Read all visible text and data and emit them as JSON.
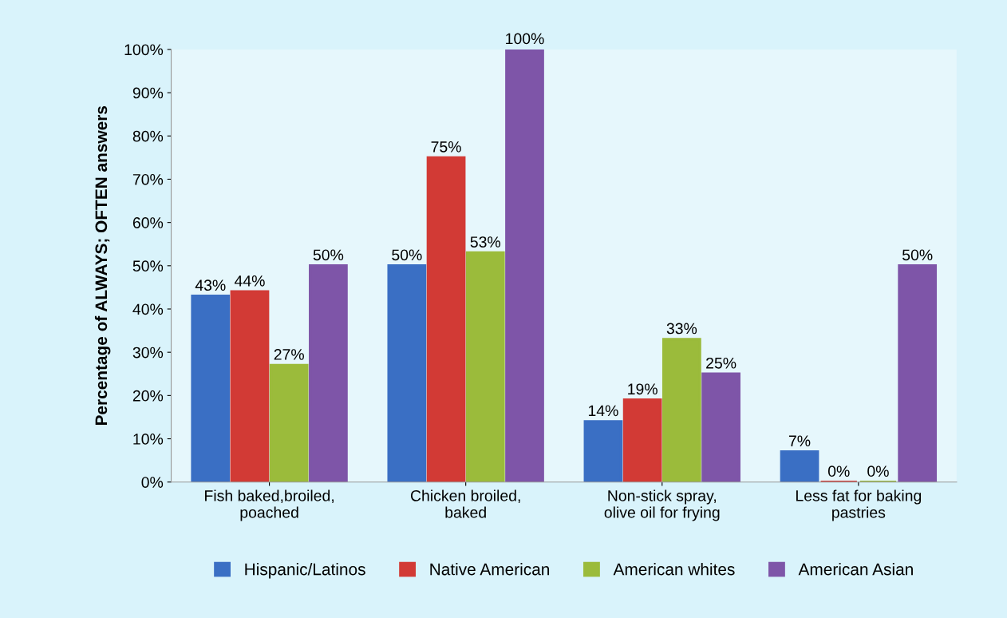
{
  "chart_data": {
    "type": "bar",
    "ylabel": "Percentage of ALWAYS; OFTEN answers",
    "categories": [
      "Fish baked,broiled,\npoached",
      "Chicken broiled,\nbaked",
      "Non-stick spray,\nolive oil for frying",
      "Less fat for baking\npastries"
    ],
    "series": [
      {
        "name": "Hispanic/Latinos",
        "color": "#3a6fc4",
        "values": [
          43,
          50,
          14,
          7
        ],
        "value_labels": [
          "43%",
          "50%",
          "14%",
          "7%"
        ]
      },
      {
        "name": "Native American",
        "color": "#d23a35",
        "values": [
          44,
          75,
          19,
          0
        ],
        "value_labels": [
          "44%",
          "75%",
          "19%",
          "0%"
        ]
      },
      {
        "name": "American whites",
        "color": "#9bbb3b",
        "values": [
          27,
          53,
          33,
          0
        ],
        "value_labels": [
          "27%",
          "53%",
          "33%",
          "0%"
        ]
      },
      {
        "name": "American Asian",
        "color": "#7e55a8",
        "values": [
          50,
          100,
          25,
          50
        ],
        "value_labels": [
          "50%",
          "100%",
          "25%",
          "50%"
        ]
      }
    ],
    "ylim": [
      0,
      100
    ],
    "yticks": [
      {
        "value": 0,
        "label": "0%"
      },
      {
        "value": 10,
        "label": "10%"
      },
      {
        "value": 20,
        "label": "20%"
      },
      {
        "value": 30,
        "label": "30%"
      },
      {
        "value": 40,
        "label": "40%"
      },
      {
        "value": 50,
        "label": "50%"
      },
      {
        "value": 60,
        "label": "60%"
      },
      {
        "value": 70,
        "label": "70%"
      },
      {
        "value": 80,
        "label": "80%"
      },
      {
        "value": 90,
        "label": "90%"
      },
      {
        "value": 100,
        "label": "100%"
      }
    ],
    "grid": false,
    "legend": "bottom"
  }
}
